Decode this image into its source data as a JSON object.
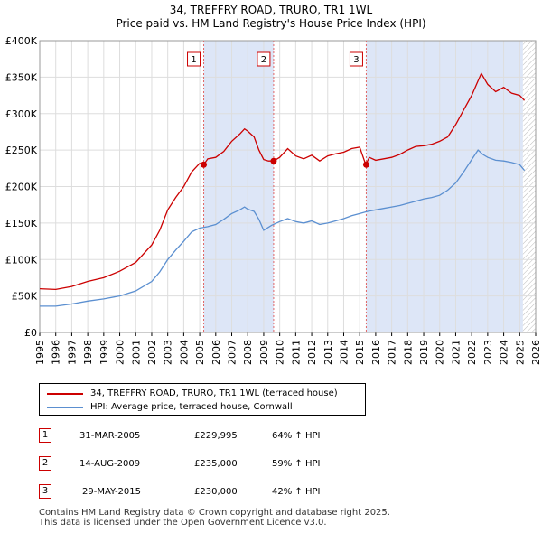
{
  "chart_data": {
    "type": "line",
    "title": "34, TREFFRY ROAD, TRURO, TR1 1WL",
    "subtitle": "Price paid vs. HM Land Registry's House Price Index (HPI)",
    "xlim": [
      1995,
      2026
    ],
    "ylim": [
      0,
      400000
    ],
    "x_ticks": [
      "1995",
      "1996",
      "1997",
      "1998",
      "1999",
      "2000",
      "2001",
      "2002",
      "2003",
      "2004",
      "2005",
      "2006",
      "2007",
      "2008",
      "2009",
      "2010",
      "2011",
      "2012",
      "2013",
      "2014",
      "2015",
      "2016",
      "2017",
      "2018",
      "2019",
      "2020",
      "2021",
      "2022",
      "2023",
      "2024",
      "2025",
      "2026"
    ],
    "y_ticks": [
      {
        "value": 0,
        "label": "£0"
      },
      {
        "value": 50000,
        "label": "£50K"
      },
      {
        "value": 100000,
        "label": "£100K"
      },
      {
        "value": 150000,
        "label": "£150K"
      },
      {
        "value": 200000,
        "label": "£200K"
      },
      {
        "value": 250000,
        "label": "£250K"
      },
      {
        "value": 300000,
        "label": "£300K"
      },
      {
        "value": 350000,
        "label": "£350K"
      },
      {
        "value": 400000,
        "label": "£400K"
      }
    ],
    "grid": true,
    "future_hatch_from": 2025.2,
    "series": [
      {
        "name": "34, TREFFRY ROAD, TRURO, TR1 1WL (terraced house)",
        "color": "#cc0000",
        "points": [
          [
            1995.0,
            60000
          ],
          [
            1996.0,
            59000
          ],
          [
            1997.0,
            63000
          ],
          [
            1998.0,
            70000
          ],
          [
            1999.0,
            75000
          ],
          [
            2000.0,
            84000
          ],
          [
            2001.0,
            96000
          ],
          [
            2002.0,
            120000
          ],
          [
            2002.5,
            140000
          ],
          [
            2003.0,
            168000
          ],
          [
            2003.5,
            185000
          ],
          [
            2004.0,
            200000
          ],
          [
            2004.5,
            220000
          ],
          [
            2005.0,
            232000
          ],
          [
            2005.25,
            229995
          ],
          [
            2005.5,
            238000
          ],
          [
            2006.0,
            240000
          ],
          [
            2006.5,
            248000
          ],
          [
            2007.0,
            262000
          ],
          [
            2007.5,
            272000
          ],
          [
            2007.8,
            279000
          ],
          [
            2008.0,
            276000
          ],
          [
            2008.4,
            268000
          ],
          [
            2008.7,
            250000
          ],
          [
            2009.0,
            237000
          ],
          [
            2009.3,
            235000
          ],
          [
            2009.62,
            235000
          ],
          [
            2010.0,
            240000
          ],
          [
            2010.5,
            252000
          ],
          [
            2011.0,
            242000
          ],
          [
            2011.5,
            238000
          ],
          [
            2012.0,
            243000
          ],
          [
            2012.5,
            235000
          ],
          [
            2013.0,
            242000
          ],
          [
            2013.5,
            245000
          ],
          [
            2014.0,
            247000
          ],
          [
            2014.5,
            252000
          ],
          [
            2015.0,
            254000
          ],
          [
            2015.38,
            230000
          ],
          [
            2015.6,
            240000
          ],
          [
            2016.0,
            236000
          ],
          [
            2016.5,
            238000
          ],
          [
            2017.0,
            240000
          ],
          [
            2017.5,
            244000
          ],
          [
            2018.0,
            250000
          ],
          [
            2018.5,
            255000
          ],
          [
            2019.0,
            256000
          ],
          [
            2019.5,
            258000
          ],
          [
            2020.0,
            262000
          ],
          [
            2020.5,
            268000
          ],
          [
            2021.0,
            285000
          ],
          [
            2021.5,
            305000
          ],
          [
            2022.0,
            325000
          ],
          [
            2022.3,
            340000
          ],
          [
            2022.6,
            355000
          ],
          [
            2023.0,
            340000
          ],
          [
            2023.5,
            330000
          ],
          [
            2024.0,
            336000
          ],
          [
            2024.5,
            328000
          ],
          [
            2025.0,
            325000
          ],
          [
            2025.3,
            318000
          ]
        ]
      },
      {
        "name": "HPI: Average price, terraced house, Cornwall",
        "color": "#5b8fd0",
        "points": [
          [
            1995.0,
            36000
          ],
          [
            1996.0,
            36000
          ],
          [
            1997.0,
            39000
          ],
          [
            1998.0,
            43000
          ],
          [
            1999.0,
            46000
          ],
          [
            2000.0,
            50000
          ],
          [
            2001.0,
            57000
          ],
          [
            2002.0,
            70000
          ],
          [
            2002.5,
            83000
          ],
          [
            2003.0,
            100000
          ],
          [
            2003.5,
            113000
          ],
          [
            2004.0,
            125000
          ],
          [
            2004.5,
            138000
          ],
          [
            2005.0,
            143000
          ],
          [
            2005.5,
            145000
          ],
          [
            2006.0,
            148000
          ],
          [
            2006.5,
            155000
          ],
          [
            2007.0,
            163000
          ],
          [
            2007.5,
            168000
          ],
          [
            2007.8,
            172000
          ],
          [
            2008.0,
            169000
          ],
          [
            2008.4,
            166000
          ],
          [
            2008.7,
            155000
          ],
          [
            2009.0,
            140000
          ],
          [
            2009.5,
            147000
          ],
          [
            2010.0,
            152000
          ],
          [
            2010.5,
            156000
          ],
          [
            2011.0,
            152000
          ],
          [
            2011.5,
            150000
          ],
          [
            2012.0,
            153000
          ],
          [
            2012.5,
            148000
          ],
          [
            2013.0,
            150000
          ],
          [
            2013.5,
            153000
          ],
          [
            2014.0,
            156000
          ],
          [
            2014.5,
            160000
          ],
          [
            2015.0,
            163000
          ],
          [
            2015.5,
            166000
          ],
          [
            2016.0,
            168000
          ],
          [
            2016.5,
            170000
          ],
          [
            2017.0,
            172000
          ],
          [
            2017.5,
            174000
          ],
          [
            2018.0,
            177000
          ],
          [
            2018.5,
            180000
          ],
          [
            2019.0,
            183000
          ],
          [
            2019.5,
            185000
          ],
          [
            2020.0,
            188000
          ],
          [
            2020.5,
            195000
          ],
          [
            2021.0,
            205000
          ],
          [
            2021.5,
            220000
          ],
          [
            2022.0,
            237000
          ],
          [
            2022.4,
            250000
          ],
          [
            2022.7,
            244000
          ],
          [
            2023.0,
            240000
          ],
          [
            2023.5,
            236000
          ],
          [
            2024.0,
            235000
          ],
          [
            2024.5,
            233000
          ],
          [
            2025.0,
            230000
          ],
          [
            2025.3,
            222000
          ]
        ]
      }
    ],
    "sales": [
      {
        "id": "1",
        "x": 2005.25,
        "y": 229995
      },
      {
        "id": "2",
        "x": 2009.62,
        "y": 235000
      },
      {
        "id": "3",
        "x": 2015.41,
        "y": 230000
      }
    ]
  },
  "legend": {
    "property_label": "34, TREFFRY ROAD, TRURO, TR1 1WL (terraced house)",
    "hpi_label": "HPI: Average price, terraced house, Cornwall"
  },
  "transactions": [
    {
      "id": "1",
      "date": "31-MAR-2005",
      "price": "£229,995",
      "hpi": "64% ↑ HPI"
    },
    {
      "id": "2",
      "date": "14-AUG-2009",
      "price": "£235,000",
      "hpi": "59% ↑ HPI"
    },
    {
      "id": "3",
      "date": "29-MAY-2015",
      "price": "£230,000",
      "hpi": "42% ↑ HPI"
    }
  ],
  "footer": {
    "line1": "Contains HM Land Registry data © Crown copyright and database right 2025.",
    "line2": "This data is licensed under the Open Government Licence v3.0."
  },
  "colors": {
    "property": "#cc0000",
    "hpi": "#5b8fd0",
    "shade": "#dde6f7"
  }
}
